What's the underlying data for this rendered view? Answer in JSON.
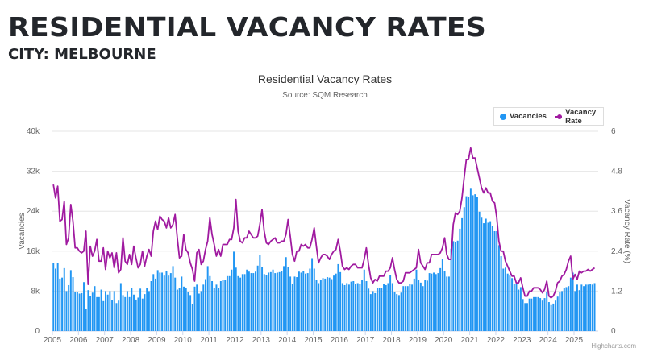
{
  "header": {
    "title": "RESIDENTIAL VACANCY RATES",
    "subtitle": "CITY: MELBOURNE"
  },
  "credit": "Highcharts.com",
  "chart_data": {
    "type": "bar+line",
    "title": "Residential Vacancy Rates",
    "subtitle": "Source: SQM Research",
    "ylabel_left": "Vacancies",
    "ylabel_right": "Vacancy Rate (%)",
    "ylim_left": [
      0,
      40000
    ],
    "ylim_right": [
      0,
      6
    ],
    "yticks_left": [
      "0",
      "8k",
      "16k",
      "24k",
      "32k",
      "40k"
    ],
    "yticks_right": [
      "0",
      "1.2",
      "2.4",
      "3.6",
      "4.8",
      "6"
    ],
    "xticks": [
      "2005",
      "2006",
      "2007",
      "2008",
      "2009",
      "2010",
      "2011",
      "2012",
      "2013",
      "2014",
      "2015",
      "2016",
      "2017",
      "2018",
      "2019",
      "2020",
      "2021",
      "2022",
      "2023",
      "2024",
      "2025"
    ],
    "x_start": "2005-01",
    "x_end": "2025-10",
    "x_frequency": "monthly",
    "legend": {
      "position": "top-right",
      "items": [
        "Vacancies",
        "Vacancy Rate"
      ]
    },
    "colors": {
      "Vacancies": "#2196f3",
      "Vacancy Rate": "#a01aa0"
    },
    "grid": true,
    "series": [
      {
        "name": "Vacancies",
        "type": "bar",
        "axis": "left",
        "values_thousands": [
          13.7,
          12.5,
          13.7,
          10.5,
          10.7,
          12.6,
          8.0,
          9.2,
          12.2,
          10.8,
          7.9,
          7.9,
          7.5,
          7.6,
          9.8,
          4.5,
          8.2,
          7.0,
          7.7,
          9.0,
          6.8,
          6.8,
          8.3,
          6.0,
          8.0,
          7.3,
          8.0,
          6.2,
          8.0,
          5.6,
          6.1,
          9.6,
          7.2,
          6.8,
          8.0,
          6.8,
          8.6,
          7.3,
          6.3,
          6.7,
          8.5,
          6.5,
          7.4,
          8.6,
          8.0,
          10.0,
          11.4,
          10.5,
          12.2,
          11.7,
          11.7,
          11.1,
          12.0,
          11.1,
          11.6,
          13.0,
          10.7,
          8.3,
          8.6,
          10.9,
          8.9,
          8.6,
          7.8,
          7.2,
          5.4,
          8.9,
          9.3,
          7.5,
          8.0,
          9.3,
          10.4,
          13.0,
          11.0,
          10.0,
          8.6,
          9.3,
          8.6,
          10.0,
          10.2,
          10.2,
          11.0,
          11.0,
          12.3,
          15.9,
          12.7,
          11.0,
          10.7,
          11.4,
          11.4,
          12.3,
          11.9,
          11.6,
          11.6,
          11.9,
          13.1,
          15.2,
          12.9,
          11.4,
          11.2,
          11.7,
          11.8,
          12.3,
          11.6,
          11.7,
          11.8,
          12.0,
          13.0,
          14.8,
          12.9,
          10.9,
          9.4,
          10.9,
          10.8,
          11.9,
          11.7,
          12.0,
          11.5,
          11.6,
          12.5,
          14.6,
          12.5,
          10.3,
          9.6,
          10.2,
          10.6,
          10.5,
          10.8,
          10.7,
          10.4,
          11.1,
          11.5,
          13.4,
          11.8,
          9.6,
          9.2,
          9.6,
          9.3,
          9.9,
          10.0,
          9.4,
          9.6,
          9.4,
          10.2,
          12.3,
          10.0,
          8.5,
          7.4,
          8.0,
          7.6,
          8.6,
          8.6,
          8.6,
          9.5,
          9.2,
          9.6,
          11.2,
          9.6,
          7.8,
          7.4,
          7.2,
          7.7,
          9.0,
          9.0,
          9.0,
          9.5,
          9.3,
          10.5,
          12.3,
          10.3,
          9.7,
          9.0,
          10.2,
          10.1,
          11.6,
          11.5,
          11.7,
          11.4,
          11.6,
          12.6,
          14.4,
          12.1,
          10.9,
          10.9,
          16.5,
          18.0,
          17.8,
          18.1,
          20.5,
          22.6,
          24.8,
          27.0,
          26.9,
          28.5,
          27.2,
          27.4,
          26.9,
          23.9,
          22.7,
          21.6,
          22.5,
          21.7,
          22.0,
          21.0,
          20.0,
          20.0,
          17.2,
          15.0,
          12.5,
          12.7,
          11.5,
          11.1,
          10.6,
          9.5,
          9.5,
          8.3,
          8.8,
          6.4,
          5.6,
          5.6,
          6.5,
          6.5,
          6.8,
          6.8,
          6.8,
          6.6,
          6.1,
          6.6,
          7.8,
          5.8,
          5.2,
          5.5,
          6.1,
          6.9,
          7.9,
          8.0,
          8.7,
          8.8,
          9.0,
          10.7,
          11.7,
          8.0,
          9.3,
          8.2,
          9.3,
          9.0,
          9.3,
          9.3,
          9.5,
          9.3,
          9.6
        ]
      },
      {
        "name": "Vacancy Rate",
        "type": "line",
        "axis": "right",
        "values": [
          4.4,
          4.0,
          4.35,
          3.3,
          3.35,
          3.9,
          2.6,
          2.8,
          3.8,
          3.3,
          2.5,
          2.5,
          2.4,
          2.35,
          2.4,
          3.0,
          1.4,
          2.55,
          2.25,
          2.4,
          2.75,
          2.1,
          2.1,
          2.5,
          1.85,
          2.4,
          2.2,
          2.35,
          1.9,
          2.35,
          1.75,
          1.85,
          2.8,
          2.1,
          2.0,
          2.3,
          2.0,
          2.55,
          2.2,
          1.9,
          2.0,
          2.4,
          1.95,
          2.25,
          2.45,
          2.25,
          3.0,
          3.3,
          3.05,
          3.45,
          3.35,
          3.3,
          3.1,
          3.4,
          3.1,
          3.2,
          3.5,
          2.8,
          2.2,
          2.25,
          2.9,
          2.45,
          2.35,
          2.05,
          1.85,
          1.5,
          2.35,
          2.45,
          2.0,
          2.1,
          2.45,
          2.7,
          3.4,
          2.9,
          2.6,
          2.25,
          2.45,
          2.25,
          2.6,
          2.6,
          2.6,
          2.75,
          2.75,
          3.1,
          3.95,
          3.0,
          2.7,
          2.65,
          2.8,
          2.8,
          3.0,
          2.9,
          2.8,
          2.8,
          2.85,
          3.2,
          3.65,
          3.0,
          2.65,
          2.6,
          2.7,
          2.75,
          2.8,
          2.65,
          2.65,
          2.7,
          2.7,
          2.9,
          3.35,
          2.85,
          2.3,
          2.1,
          2.4,
          2.4,
          2.6,
          2.55,
          2.6,
          2.5,
          2.5,
          2.75,
          3.1,
          2.55,
          2.05,
          2.2,
          2.3,
          2.3,
          2.25,
          2.15,
          2.3,
          2.4,
          2.45,
          2.75,
          2.4,
          1.95,
          1.85,
          1.9,
          1.85,
          1.95,
          2.0,
          2.0,
          1.9,
          1.9,
          1.9,
          2.15,
          2.5,
          2.0,
          1.6,
          1.45,
          1.55,
          1.5,
          1.65,
          1.65,
          1.65,
          1.8,
          1.8,
          1.9,
          2.2,
          1.85,
          1.55,
          1.45,
          1.45,
          1.5,
          1.75,
          1.75,
          1.75,
          1.8,
          1.85,
          1.9,
          2.45,
          2.05,
          1.95,
          1.85,
          2.05,
          2.05,
          2.3,
          2.3,
          2.3,
          2.3,
          2.35,
          2.5,
          2.8,
          2.3,
          2.15,
          2.15,
          3.2,
          3.55,
          3.5,
          3.6,
          4.0,
          4.6,
          5.15,
          5.15,
          5.5,
          5.2,
          5.2,
          4.9,
          4.6,
          4.3,
          4.15,
          4.3,
          4.15,
          4.15,
          3.9,
          3.85,
          3.4,
          2.7,
          2.4,
          2.4,
          2.1,
          1.95,
          1.8,
          1.65,
          1.65,
          1.45,
          1.45,
          1.6,
          1.3,
          1.05,
          1.05,
          1.2,
          1.2,
          1.3,
          1.3,
          1.3,
          1.25,
          1.15,
          1.25,
          1.5,
          1.05,
          1.0,
          1.05,
          1.2,
          1.45,
          1.5,
          1.65,
          1.7,
          1.85,
          2.1,
          2.25,
          1.55,
          1.7,
          1.55,
          1.8,
          1.75,
          1.8,
          1.8,
          1.85,
          1.8,
          1.85,
          1.9
        ]
      }
    ]
  }
}
